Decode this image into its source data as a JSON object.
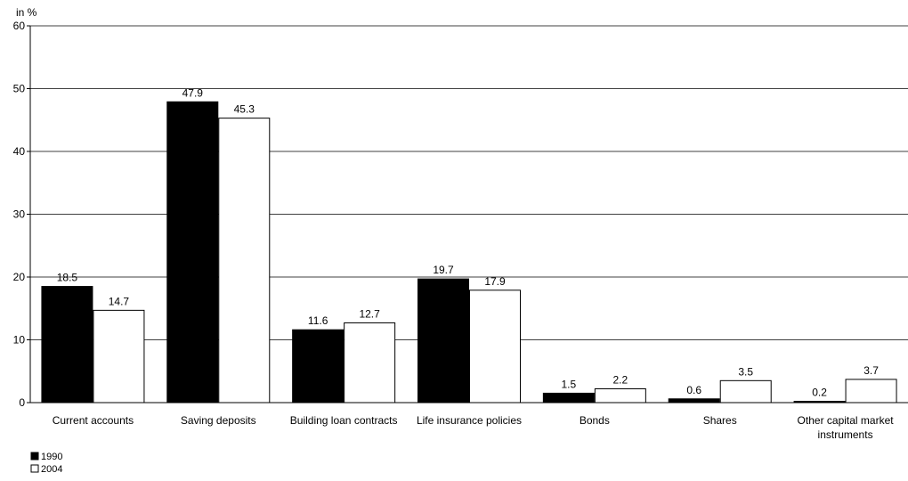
{
  "chart_data": {
    "type": "bar",
    "y_unit_label": "in %",
    "categories": [
      [
        "Current accounts"
      ],
      [
        "Saving deposits"
      ],
      [
        "Building loan contracts"
      ],
      [
        "Life insurance policies"
      ],
      [
        "Bonds"
      ],
      [
        "Shares"
      ],
      [
        "Other capital market",
        "instruments"
      ]
    ],
    "series": [
      {
        "name": "1990",
        "color": "#000000",
        "values": [
          18.5,
          47.9,
          11.6,
          19.7,
          1.5,
          0.6,
          0.2
        ]
      },
      {
        "name": "2004",
        "color": "#ffffff",
        "values": [
          14.7,
          45.3,
          12.7,
          17.9,
          2.2,
          3.5,
          3.7
        ]
      }
    ],
    "ylim": [
      0,
      60
    ],
    "yticks": [
      0,
      10,
      20,
      30,
      40,
      50,
      60
    ],
    "grid": true,
    "legend_position": "bottom-left"
  }
}
